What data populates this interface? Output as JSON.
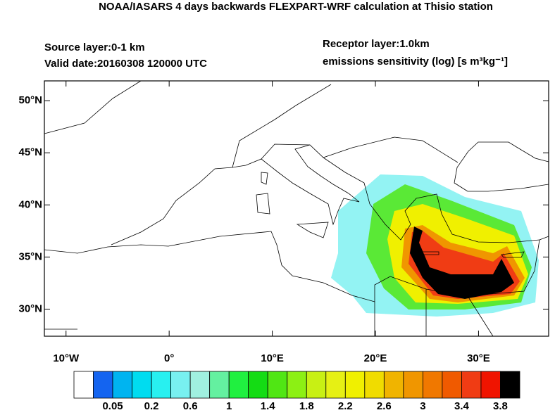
{
  "header": {
    "title": "NOAA/IASARS 4 days backwards FLEXPART-WRF calculation at Thisio station",
    "source_layer": "Source layer:0-1 km",
    "valid_date": "Valid date:20160308 120000 UTC",
    "receptor_layer": "Receptor layer:1.0km",
    "units": "emissions sensitivity (log) [s m³kg⁻¹]"
  },
  "map": {
    "lonlim": [
      -12.1,
      36.8
    ],
    "latlim": [
      27.4,
      51.9
    ],
    "lonticks": [
      {
        "value": -10,
        "label": "10°W"
      },
      {
        "value": 0,
        "label": "0°"
      },
      {
        "value": 10,
        "label": "10°E"
      },
      {
        "value": 20,
        "label": "20°E"
      },
      {
        "value": 30,
        "label": "30°E"
      }
    ],
    "latticks": [
      {
        "value": 30,
        "label": "30°N"
      },
      {
        "value": 35,
        "label": "35°N"
      },
      {
        "value": 40,
        "label": "40°N"
      },
      {
        "value": 45,
        "label": "45°N"
      },
      {
        "value": 50,
        "label": "50°N"
      }
    ]
  },
  "colorbar": {
    "colors": [
      "#ffffff",
      "#1464f0",
      "#00b4f0",
      "#00dcf0",
      "#28f0f0",
      "#78f0f0",
      "#a0f0e0",
      "#64f0a0",
      "#20f040",
      "#14dc14",
      "#50e614",
      "#8cf014",
      "#c8f014",
      "#e6f014",
      "#f0f000",
      "#f0dc00",
      "#f0b400",
      "#f09600",
      "#f07800",
      "#f05a00",
      "#f03c14",
      "#f01400",
      "#000000"
    ],
    "ticks": [
      0.05,
      0.2,
      0.6,
      1,
      1.4,
      1.8,
      2.2,
      2.6,
      3,
      3.4,
      3.8
    ]
  }
}
